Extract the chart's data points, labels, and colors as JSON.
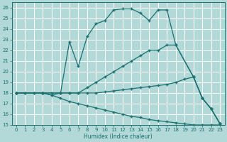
{
  "xlabel": "Humidex (Indice chaleur)",
  "xlim": [
    -0.5,
    23.5
  ],
  "ylim": [
    15,
    26.5
  ],
  "yticks": [
    15,
    16,
    17,
    18,
    19,
    20,
    21,
    22,
    23,
    24,
    25,
    26
  ],
  "xticks": [
    0,
    1,
    2,
    3,
    4,
    5,
    6,
    7,
    8,
    9,
    10,
    11,
    12,
    13,
    14,
    15,
    16,
    17,
    18,
    19,
    20,
    21,
    22,
    23
  ],
  "bg_color": "#b2d8d8",
  "grid_color": "#ffffff",
  "line_color": "#1a7070",
  "line_upper_x": [
    0,
    3,
    5,
    6,
    7,
    8,
    9,
    10,
    11,
    12,
    13,
    14,
    15,
    16,
    17,
    18,
    20,
    21,
    22,
    23
  ],
  "line_upper_y": [
    18,
    18,
    18,
    22.8,
    20.5,
    23.3,
    24.5,
    24.8,
    25.8,
    25.9,
    25.9,
    25.5,
    24.8,
    25.8,
    25.8,
    22.5,
    19.5,
    17.5,
    16.5,
    15.1
  ],
  "line_diag_x": [
    0,
    3,
    4,
    5,
    6,
    7,
    8,
    9,
    10,
    11,
    12,
    13,
    14,
    15,
    16,
    17,
    18,
    20,
    21,
    22,
    23
  ],
  "line_diag_y": [
    18,
    18,
    18,
    18,
    18,
    18,
    18.5,
    19,
    19.5,
    20,
    20.5,
    21,
    21.5,
    22,
    22,
    22.5,
    22.5,
    19.5,
    17.5,
    16.5,
    15.1
  ],
  "line_flat_x": [
    0,
    1,
    2,
    3,
    4,
    5,
    6,
    7,
    8,
    9,
    10,
    11,
    12,
    13,
    14,
    15,
    16,
    17,
    18,
    19,
    20,
    21,
    22,
    23
  ],
  "line_flat_y": [
    18,
    18,
    18,
    18,
    17.8,
    18,
    18,
    18,
    18,
    18,
    18.1,
    18.2,
    18.3,
    18.4,
    18.5,
    18.6,
    18.7,
    18.8,
    19.0,
    19.3,
    19.5,
    17.5,
    16.5,
    15.1
  ],
  "line_lower_x": [
    0,
    1,
    2,
    3,
    4,
    5,
    6,
    7,
    8,
    9,
    10,
    11,
    12,
    13,
    14,
    15,
    16,
    17,
    18,
    19,
    20,
    21,
    22,
    23
  ],
  "line_lower_y": [
    18,
    18,
    18,
    18,
    17.8,
    17.5,
    17.2,
    17.0,
    16.8,
    16.6,
    16.4,
    16.2,
    16.0,
    15.8,
    15.7,
    15.5,
    15.4,
    15.3,
    15.2,
    15.1,
    15.0,
    15.0,
    15.0,
    15.0
  ]
}
